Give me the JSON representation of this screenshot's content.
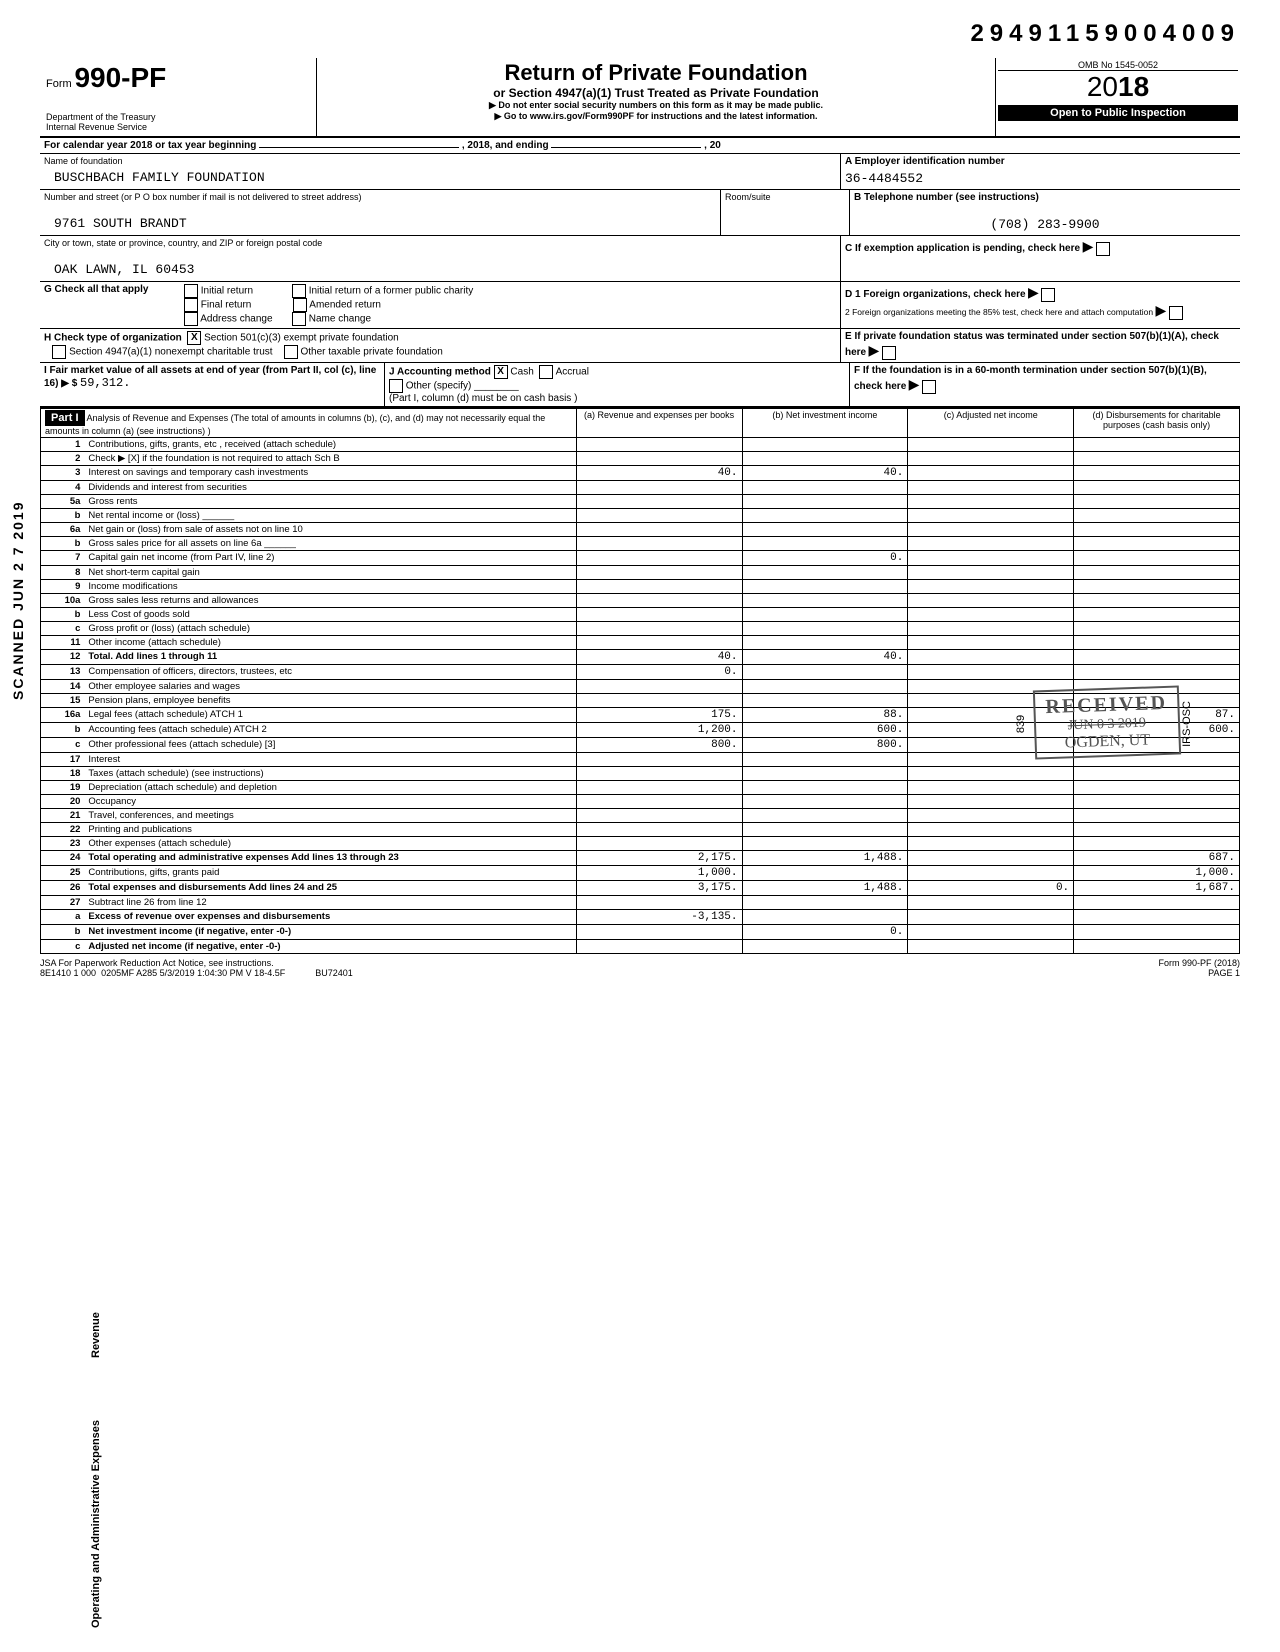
{
  "topcode": "29491159004009",
  "form": {
    "label": "Form",
    "number": "990-PF",
    "dept1": "Department of the Treasury",
    "dept2": "Internal Revenue Service",
    "title": "Return of Private Foundation",
    "subtitle": "or Section 4947(a)(1) Trust Treated as Private Foundation",
    "note1": "▶ Do not enter social security numbers on this form as it may be made public.",
    "note2": "▶ Go to www.irs.gov/Form990PF for instructions and the latest information.",
    "omb": "OMB No 1545-0052",
    "year": "2018",
    "inspection": "Open to Public Inspection"
  },
  "calendar_line": {
    "prefix": "For calendar year 2018 or tax year beginning",
    "mid": ", 2018, and ending",
    "suffix": ", 20"
  },
  "ident": {
    "name_label": "Name of foundation",
    "name": "BUSCHBACH FAMILY FOUNDATION",
    "ein_label": "A  Employer identification number",
    "ein": "36-4484552",
    "street_label": "Number and street (or P O box number if mail is not delivered to street address)",
    "street": "9761 SOUTH BRANDT",
    "room_label": "Room/suite",
    "phone_label": "B  Telephone number (see instructions)",
    "phone": "(708) 283-9900",
    "city_label": "City or town, state or province, country, and ZIP or foreign postal code",
    "city": "OAK LAWN, IL 60453",
    "c_label": "C  If exemption application is pending, check here"
  },
  "checks": {
    "g_label": "G  Check all that apply",
    "g_items": [
      "Initial return",
      "Final return",
      "Address change",
      "Initial return of a former public charity",
      "Amended return",
      "Name change"
    ],
    "h_label": "H  Check type of organization",
    "h_items": [
      "Section 501(c)(3) exempt private foundation",
      "Section 4947(a)(1) nonexempt charitable trust",
      "Other taxable private foundation"
    ],
    "i_label": "I  Fair market value of all assets at end of year (from Part II, col (c), line 16) ▶ $",
    "i_value": "59,312.",
    "j_label": "J  Accounting method",
    "j_items": [
      "Cash",
      "Accrual",
      "Other (specify)"
    ],
    "j_note": "(Part I, column (d) must be on cash basis )",
    "d_label": "D  1  Foreign organizations, check here",
    "d2_label": "2  Foreign organizations meeting the 85% test, check here and attach computation",
    "e_label": "E  If private foundation status was terminated under section 507(b)(1)(A), check here",
    "f_label": "F  If the foundation is in a 60-month termination under section 507(b)(1)(B), check here"
  },
  "part1": {
    "header": "Part I",
    "desc": "Analysis of Revenue and Expenses (The total of amounts in columns (b), (c), and (d) may not necessarily equal the amounts in column (a) (see instructions) )",
    "cols": {
      "a": "(a) Revenue and expenses per books",
      "b": "(b) Net investment income",
      "c": "(c) Adjusted net income",
      "d": "(d) Disbursements for charitable purposes (cash basis only)"
    }
  },
  "side_rev": "Revenue",
  "side_exp": "Operating and Administrative Expenses",
  "side_scan": "SCANNED  JUN 2 7 2019",
  "lines": [
    {
      "no": "1",
      "desc": "Contributions, gifts, grants, etc , received (attach schedule)"
    },
    {
      "no": "2",
      "desc": "Check ▶  [X]  if the foundation is not required to attach Sch B"
    },
    {
      "no": "3",
      "desc": "Interest on savings and temporary cash investments",
      "a": "40.",
      "b": "40."
    },
    {
      "no": "4",
      "desc": "Dividends and interest from securities"
    },
    {
      "no": "5a",
      "desc": "Gross rents"
    },
    {
      "no": "b",
      "desc": "Net rental income or (loss) ______"
    },
    {
      "no": "6a",
      "desc": "Net gain or (loss) from sale of assets not on line 10"
    },
    {
      "no": "b",
      "desc": "Gross sales price for all assets on line 6a ______"
    },
    {
      "no": "7",
      "desc": "Capital gain net income (from Part IV, line 2)",
      "b": "0."
    },
    {
      "no": "8",
      "desc": "Net short-term capital gain"
    },
    {
      "no": "9",
      "desc": "Income modifications"
    },
    {
      "no": "10a",
      "desc": "Gross sales less returns and allowances"
    },
    {
      "no": "b",
      "desc": "Less Cost of goods sold"
    },
    {
      "no": "c",
      "desc": "Gross profit or (loss) (attach schedule)"
    },
    {
      "no": "11",
      "desc": "Other income (attach schedule)"
    },
    {
      "no": "12",
      "desc": "Total. Add lines 1 through 11",
      "a": "40.",
      "b": "40.",
      "bold": true
    },
    {
      "no": "13",
      "desc": "Compensation of officers, directors, trustees, etc",
      "a": "0."
    },
    {
      "no": "14",
      "desc": "Other employee salaries and wages"
    },
    {
      "no": "15",
      "desc": "Pension plans, employee benefits"
    },
    {
      "no": "16a",
      "desc": "Legal fees (attach schedule) ATCH 1",
      "a": "175.",
      "b": "88.",
      "d": "87."
    },
    {
      "no": "b",
      "desc": "Accounting fees (attach schedule) ATCH 2",
      "a": "1,200.",
      "b": "600.",
      "d": "600."
    },
    {
      "no": "c",
      "desc": "Other professional fees (attach schedule) [3]",
      "a": "800.",
      "b": "800."
    },
    {
      "no": "17",
      "desc": "Interest"
    },
    {
      "no": "18",
      "desc": "Taxes (attach schedule) (see instructions)"
    },
    {
      "no": "19",
      "desc": "Depreciation (attach schedule) and depletion"
    },
    {
      "no": "20",
      "desc": "Occupancy"
    },
    {
      "no": "21",
      "desc": "Travel, conferences, and meetings"
    },
    {
      "no": "22",
      "desc": "Printing and publications"
    },
    {
      "no": "23",
      "desc": "Other expenses (attach schedule)"
    },
    {
      "no": "24",
      "desc": "Total operating and administrative expenses Add lines 13 through 23",
      "a": "2,175.",
      "b": "1,488.",
      "d": "687.",
      "bold": true
    },
    {
      "no": "25",
      "desc": "Contributions, gifts, grants paid",
      "a": "1,000.",
      "d": "1,000."
    },
    {
      "no": "26",
      "desc": "Total expenses and disbursements Add lines 24 and 25",
      "a": "3,175.",
      "b": "1,488.",
      "c": "0.",
      "d": "1,687.",
      "bold": true
    },
    {
      "no": "27",
      "desc": "Subtract line 26 from line 12"
    },
    {
      "no": "a",
      "desc": "Excess of revenue over expenses and disbursements",
      "a": "-3,135.",
      "bold": true
    },
    {
      "no": "b",
      "desc": "Net investment income (if negative, enter -0-)",
      "b": "0.",
      "bold": true
    },
    {
      "no": "c",
      "desc": "Adjusted net income (if negative, enter -0-)",
      "bold": true
    }
  ],
  "stamp": {
    "received": "RECEIVED",
    "date": "JUN 0 3 2019",
    "place": "OGDEN, UT",
    "side": "839",
    "side2": "IRS-OSC"
  },
  "footer": {
    "jsa": "JSA  For Paperwork Reduction Act Notice, see instructions.",
    "code": "8E1410 1 000",
    "ts": "0205MF A285  5/3/2019     1:04:30 PM   V 18-4.5F",
    "bu": "BU72401",
    "form": "Form 990-PF (2018)",
    "page": "PAGE 1"
  }
}
